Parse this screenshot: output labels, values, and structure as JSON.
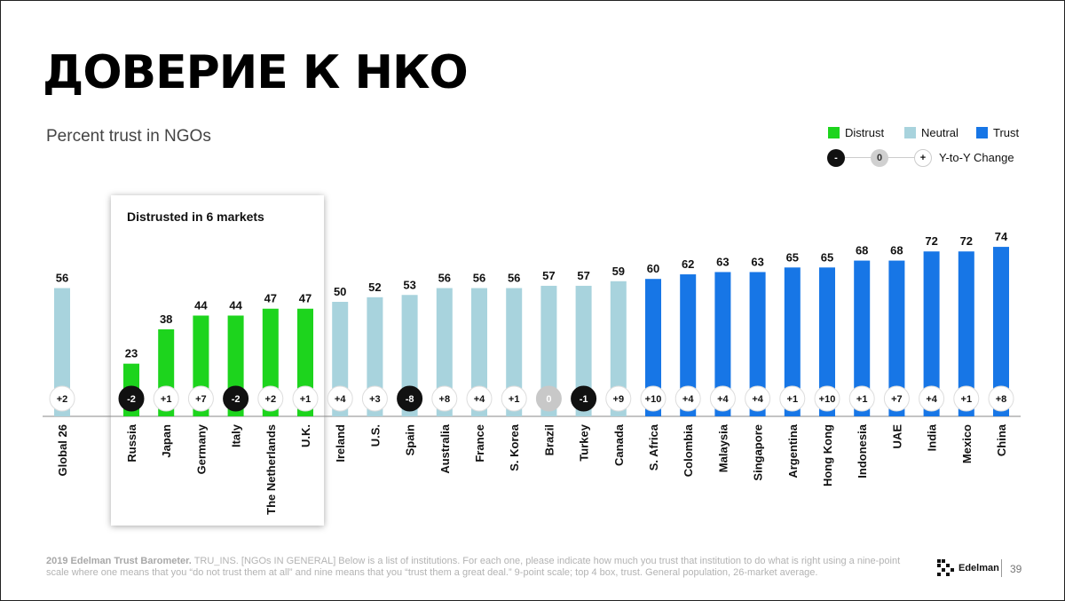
{
  "title": "ДОВЕРИЕ К НКО",
  "subtitle": "Percent trust in NGOs",
  "legend": {
    "distrust": "Distrust",
    "neutral": "Neutral",
    "trust": "Trust",
    "yoy_minus": "-",
    "yoy_zero": "0",
    "yoy_plus": "+",
    "yoy_label": "Y-to-Y Change"
  },
  "highlight": {
    "label": "Distrusted in 6 markets"
  },
  "colors": {
    "distrust": "#1dd41d",
    "neutral": "#a8d3dd",
    "trust": "#1776e6",
    "negative_change": "#111111",
    "zero_change": "#c8c8c8"
  },
  "chart_data": {
    "type": "bar",
    "title": "Percent trust in NGOs",
    "categories": [
      "Global 26",
      "Russia",
      "Japan",
      "Germany",
      "Italy",
      "The Netherlands",
      "U.K.",
      "Ireland",
      "U.S.",
      "Spain",
      "Australia",
      "France",
      "S. Korea",
      "Brazil",
      "Turkey",
      "Canada",
      "S. Africa",
      "Colombia",
      "Malaysia",
      "Singapore",
      "Argentina",
      "Hong Kong",
      "Indonesia",
      "UAE",
      "India",
      "Mexico",
      "China"
    ],
    "values": [
      56,
      23,
      38,
      44,
      44,
      47,
      47,
      50,
      52,
      53,
      56,
      56,
      56,
      57,
      57,
      59,
      60,
      62,
      63,
      63,
      65,
      65,
      68,
      68,
      72,
      72,
      74
    ],
    "value_labels": [
      "56",
      "23",
      "38",
      "44",
      "44",
      "47",
      "47",
      "50",
      "52",
      "53",
      "56",
      "56",
      "56",
      "57",
      "57",
      "59",
      "60",
      "62",
      "63",
      "63",
      "65",
      "65",
      "68",
      "68",
      "72",
      "72",
      "74"
    ],
    "trust_level": [
      "neutral",
      "distrust",
      "distrust",
      "distrust",
      "distrust",
      "distrust",
      "distrust",
      "neutral",
      "neutral",
      "neutral",
      "neutral",
      "neutral",
      "neutral",
      "neutral",
      "neutral",
      "neutral",
      "trust",
      "trust",
      "trust",
      "trust",
      "trust",
      "trust",
      "trust",
      "trust",
      "trust",
      "trust",
      "trust"
    ],
    "yoy_change": [
      2,
      -2,
      1,
      7,
      -2,
      2,
      1,
      4,
      3,
      -8,
      8,
      4,
      1,
      0,
      -1,
      9,
      10,
      4,
      4,
      4,
      1,
      10,
      1,
      7,
      4,
      1,
      8
    ],
    "yoy_labels": [
      "+2",
      "-2",
      "+1",
      "+7",
      "-2",
      "+2",
      "+1",
      "+4",
      "+3",
      "-8",
      "+8",
      "+4",
      "+1",
      "0",
      "-1",
      "+9",
      "+10",
      "+4",
      "+4",
      "+4",
      "+1",
      "+10",
      "+1",
      "+7",
      "+4",
      "+1",
      "+8"
    ],
    "ylim": [
      0,
      100
    ]
  },
  "footnote": {
    "bold": "2019 Edelman Trust Barometer.",
    "text": " TRU_INS. [NGOs IN GENERAL] Below is a list of institutions. For each one, please indicate how much you trust that institution to do what is right using a nine-point scale where one means that you “do not trust them at all” and nine means that you “trust them a great deal.” 9-point scale; top 4 box, trust. General population, 26-market average."
  },
  "brand": {
    "name": "Edelman",
    "page": "39"
  }
}
